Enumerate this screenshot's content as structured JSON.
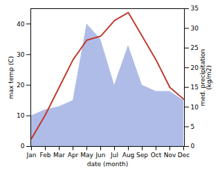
{
  "chart_data": {
    "type": "line",
    "xlabel": "date (month)",
    "ylabel": "max temp (C)",
    "y2label": "med. precipitation\n(kg/m2)",
    "categories": [
      "Jan",
      "Feb",
      "Mar",
      "Apr",
      "May",
      "Jun",
      "Jul",
      "Aug",
      "Sep",
      "Oct",
      "Nov",
      "Dec"
    ],
    "series": [
      {
        "type": "area",
        "color": "#b0bce8",
        "values": [
          10,
          12,
          13,
          15,
          40,
          35,
          20,
          33,
          20,
          18,
          18,
          15
        ]
      },
      {
        "type": "line",
        "color": "#c0392b",
        "axis": "y2",
        "values": [
          2,
          8,
          15,
          22,
          27,
          28,
          32,
          34,
          28,
          22,
          15,
          12
        ]
      }
    ],
    "ylim": [
      0,
      45
    ],
    "yticks": [
      0,
      10,
      20,
      30,
      40
    ],
    "y2lim": [
      0,
      35
    ],
    "y2ticks": [
      0,
      5,
      10,
      15,
      20,
      25,
      30,
      35
    ],
    "grid": false
  }
}
